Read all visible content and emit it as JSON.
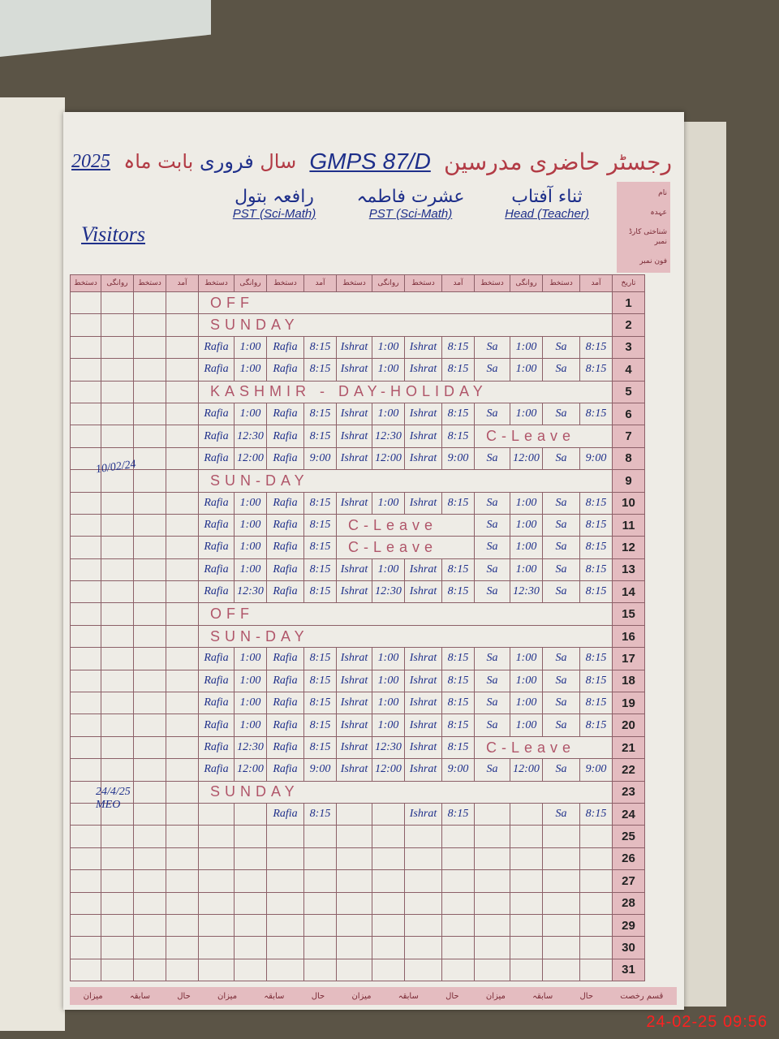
{
  "header": {
    "title_urdu": "رجسٹر حاضری مدرسین",
    "school": "GMPS 87/D",
    "month_label": "بابت ماہ",
    "month": "فروری",
    "year_label": "سال",
    "year": "2025"
  },
  "visitors_label": "Visitors",
  "side_labels": [
    "نام",
    "عہدہ",
    "شناختی کارڈ نمبر",
    "فون نمبر"
  ],
  "teachers": [
    {
      "name": "رافعہ بتول",
      "designation": "PST (Sci-Math)"
    },
    {
      "name": "عشرت فاطمہ",
      "designation": "PST (Sci-Math)"
    },
    {
      "name": "ثناء آفتاب",
      "designation": "Head (Teacher)"
    }
  ],
  "column_headers": {
    "date": "تاریخ",
    "arrival": "آمد",
    "sign": "دستخط",
    "departure": "روانگی"
  },
  "rows": [
    {
      "date": "1",
      "note": "OFF"
    },
    {
      "date": "2",
      "note": "SUNDAY"
    },
    {
      "date": "3",
      "cells": [
        [
          "Rafia",
          "1:00",
          "Rafia",
          "8:15"
        ],
        [
          "Ishrat",
          "1:00",
          "Ishrat",
          "8:15"
        ],
        [
          "Sa",
          "1:00",
          "Sa",
          "8:15"
        ]
      ]
    },
    {
      "date": "4",
      "cells": [
        [
          "Rafia",
          "1:00",
          "Rafia",
          "8:15"
        ],
        [
          "Ishrat",
          "1:00",
          "Ishrat",
          "8:15"
        ],
        [
          "Sa",
          "1:00",
          "Sa",
          "8:15"
        ]
      ]
    },
    {
      "date": "5",
      "note": "KASHMIR - DAY-HOLIDAY"
    },
    {
      "date": "6",
      "cells": [
        [
          "Rafia",
          "1:00",
          "Rafia",
          "8:15"
        ],
        [
          "Ishrat",
          "1:00",
          "Ishrat",
          "8:15"
        ],
        [
          "Sa",
          "1:00",
          "Sa",
          "8:15"
        ]
      ]
    },
    {
      "date": "7",
      "cells": [
        [
          "Rafia",
          "12:30",
          "Rafia",
          "8:15"
        ],
        [
          "Ishrat",
          "12:30",
          "Ishrat",
          "8:15"
        ],
        "C-Leave"
      ]
    },
    {
      "date": "8",
      "cells": [
        [
          "Rafia",
          "12:00",
          "Rafia",
          "9:00"
        ],
        [
          "Ishrat",
          "12:00",
          "Ishrat",
          "9:00"
        ],
        [
          "Sa",
          "12:00",
          "Sa",
          "9:00"
        ]
      ]
    },
    {
      "date": "9",
      "note": "SUN-DAY"
    },
    {
      "date": "10",
      "cells": [
        [
          "Rafia",
          "1:00",
          "Rafia",
          "8:15"
        ],
        [
          "Ishrat",
          "1:00",
          "Ishrat",
          "8:15"
        ],
        [
          "Sa",
          "1:00",
          "Sa",
          "8:15"
        ]
      ]
    },
    {
      "date": "11",
      "cells": [
        [
          "Rafia",
          "1:00",
          "Rafia",
          "8:15"
        ],
        "C-Leave",
        [
          "Sa",
          "1:00",
          "Sa",
          "8:15"
        ]
      ]
    },
    {
      "date": "12",
      "cells": [
        [
          "Rafia",
          "1:00",
          "Rafia",
          "8:15"
        ],
        "C-Leave",
        [
          "Sa",
          "1:00",
          "Sa",
          "8:15"
        ]
      ]
    },
    {
      "date": "13",
      "cells": [
        [
          "Rafia",
          "1:00",
          "Rafia",
          "8:15"
        ],
        [
          "Ishrat",
          "1:00",
          "Ishrat",
          "8:15"
        ],
        [
          "Sa",
          "1:00",
          "Sa",
          "8:15"
        ]
      ]
    },
    {
      "date": "14",
      "cells": [
        [
          "Rafia",
          "12:30",
          "Rafia",
          "8:15"
        ],
        [
          "Ishrat",
          "12:30",
          "Ishrat",
          "8:15"
        ],
        [
          "Sa",
          "12:30",
          "Sa",
          "8:15"
        ]
      ]
    },
    {
      "date": "15",
      "note": "OFF"
    },
    {
      "date": "16",
      "note": "SUN-DAY"
    },
    {
      "date": "17",
      "cells": [
        [
          "Rafia",
          "1:00",
          "Rafia",
          "8:15"
        ],
        [
          "Ishrat",
          "1:00",
          "Ishrat",
          "8:15"
        ],
        [
          "Sa",
          "1:00",
          "Sa",
          "8:15"
        ]
      ]
    },
    {
      "date": "18",
      "cells": [
        [
          "Rafia",
          "1:00",
          "Rafia",
          "8:15"
        ],
        [
          "Ishrat",
          "1:00",
          "Ishrat",
          "8:15"
        ],
        [
          "Sa",
          "1:00",
          "Sa",
          "8:15"
        ]
      ]
    },
    {
      "date": "19",
      "cells": [
        [
          "Rafia",
          "1:00",
          "Rafia",
          "8:15"
        ],
        [
          "Ishrat",
          "1:00",
          "Ishrat",
          "8:15"
        ],
        [
          "Sa",
          "1:00",
          "Sa",
          "8:15"
        ]
      ]
    },
    {
      "date": "20",
      "cells": [
        [
          "Rafia",
          "1:00",
          "Rafia",
          "8:15"
        ],
        [
          "Ishrat",
          "1:00",
          "Ishrat",
          "8:15"
        ],
        [
          "Sa",
          "1:00",
          "Sa",
          "8:15"
        ]
      ]
    },
    {
      "date": "21",
      "cells": [
        [
          "Rafia",
          "12:30",
          "Rafia",
          "8:15"
        ],
        [
          "Ishrat",
          "12:30",
          "Ishrat",
          "8:15"
        ],
        "C-Leave"
      ]
    },
    {
      "date": "22",
      "cells": [
        [
          "Rafia",
          "12:00",
          "Rafia",
          "9:00"
        ],
        [
          "Ishrat",
          "12:00",
          "Ishrat",
          "9:00"
        ],
        [
          "Sa",
          "12:00",
          "Sa",
          "9:00"
        ]
      ]
    },
    {
      "date": "23",
      "note": "SUNDAY"
    },
    {
      "date": "24",
      "cells": [
        [
          "",
          "",
          "Rafia",
          "8:15"
        ],
        [
          "",
          "",
          "Ishrat",
          "8:15"
        ],
        [
          "",
          "",
          "Sa",
          "8:15"
        ]
      ]
    },
    {
      "date": "25"
    },
    {
      "date": "26"
    },
    {
      "date": "27"
    },
    {
      "date": "28"
    },
    {
      "date": "29"
    },
    {
      "date": "30"
    },
    {
      "date": "31"
    }
  ],
  "visitor_entries": [
    {
      "text": "10/02/24"
    },
    {
      "text": "24/4/25 MEO"
    }
  ],
  "footer_labels": [
    "میزان",
    "سابقہ",
    "حال",
    "میزان",
    "سابقہ",
    "حال",
    "میزان",
    "سابقہ",
    "حال",
    "میزان",
    "سابقہ",
    "حال",
    "قسم رخصت"
  ],
  "camera_timestamp": "24-02-25  09:56",
  "colors": {
    "ink": "#1e2f8a",
    "print": "#b23b45",
    "pink_band": "#e4bcc0"
  }
}
